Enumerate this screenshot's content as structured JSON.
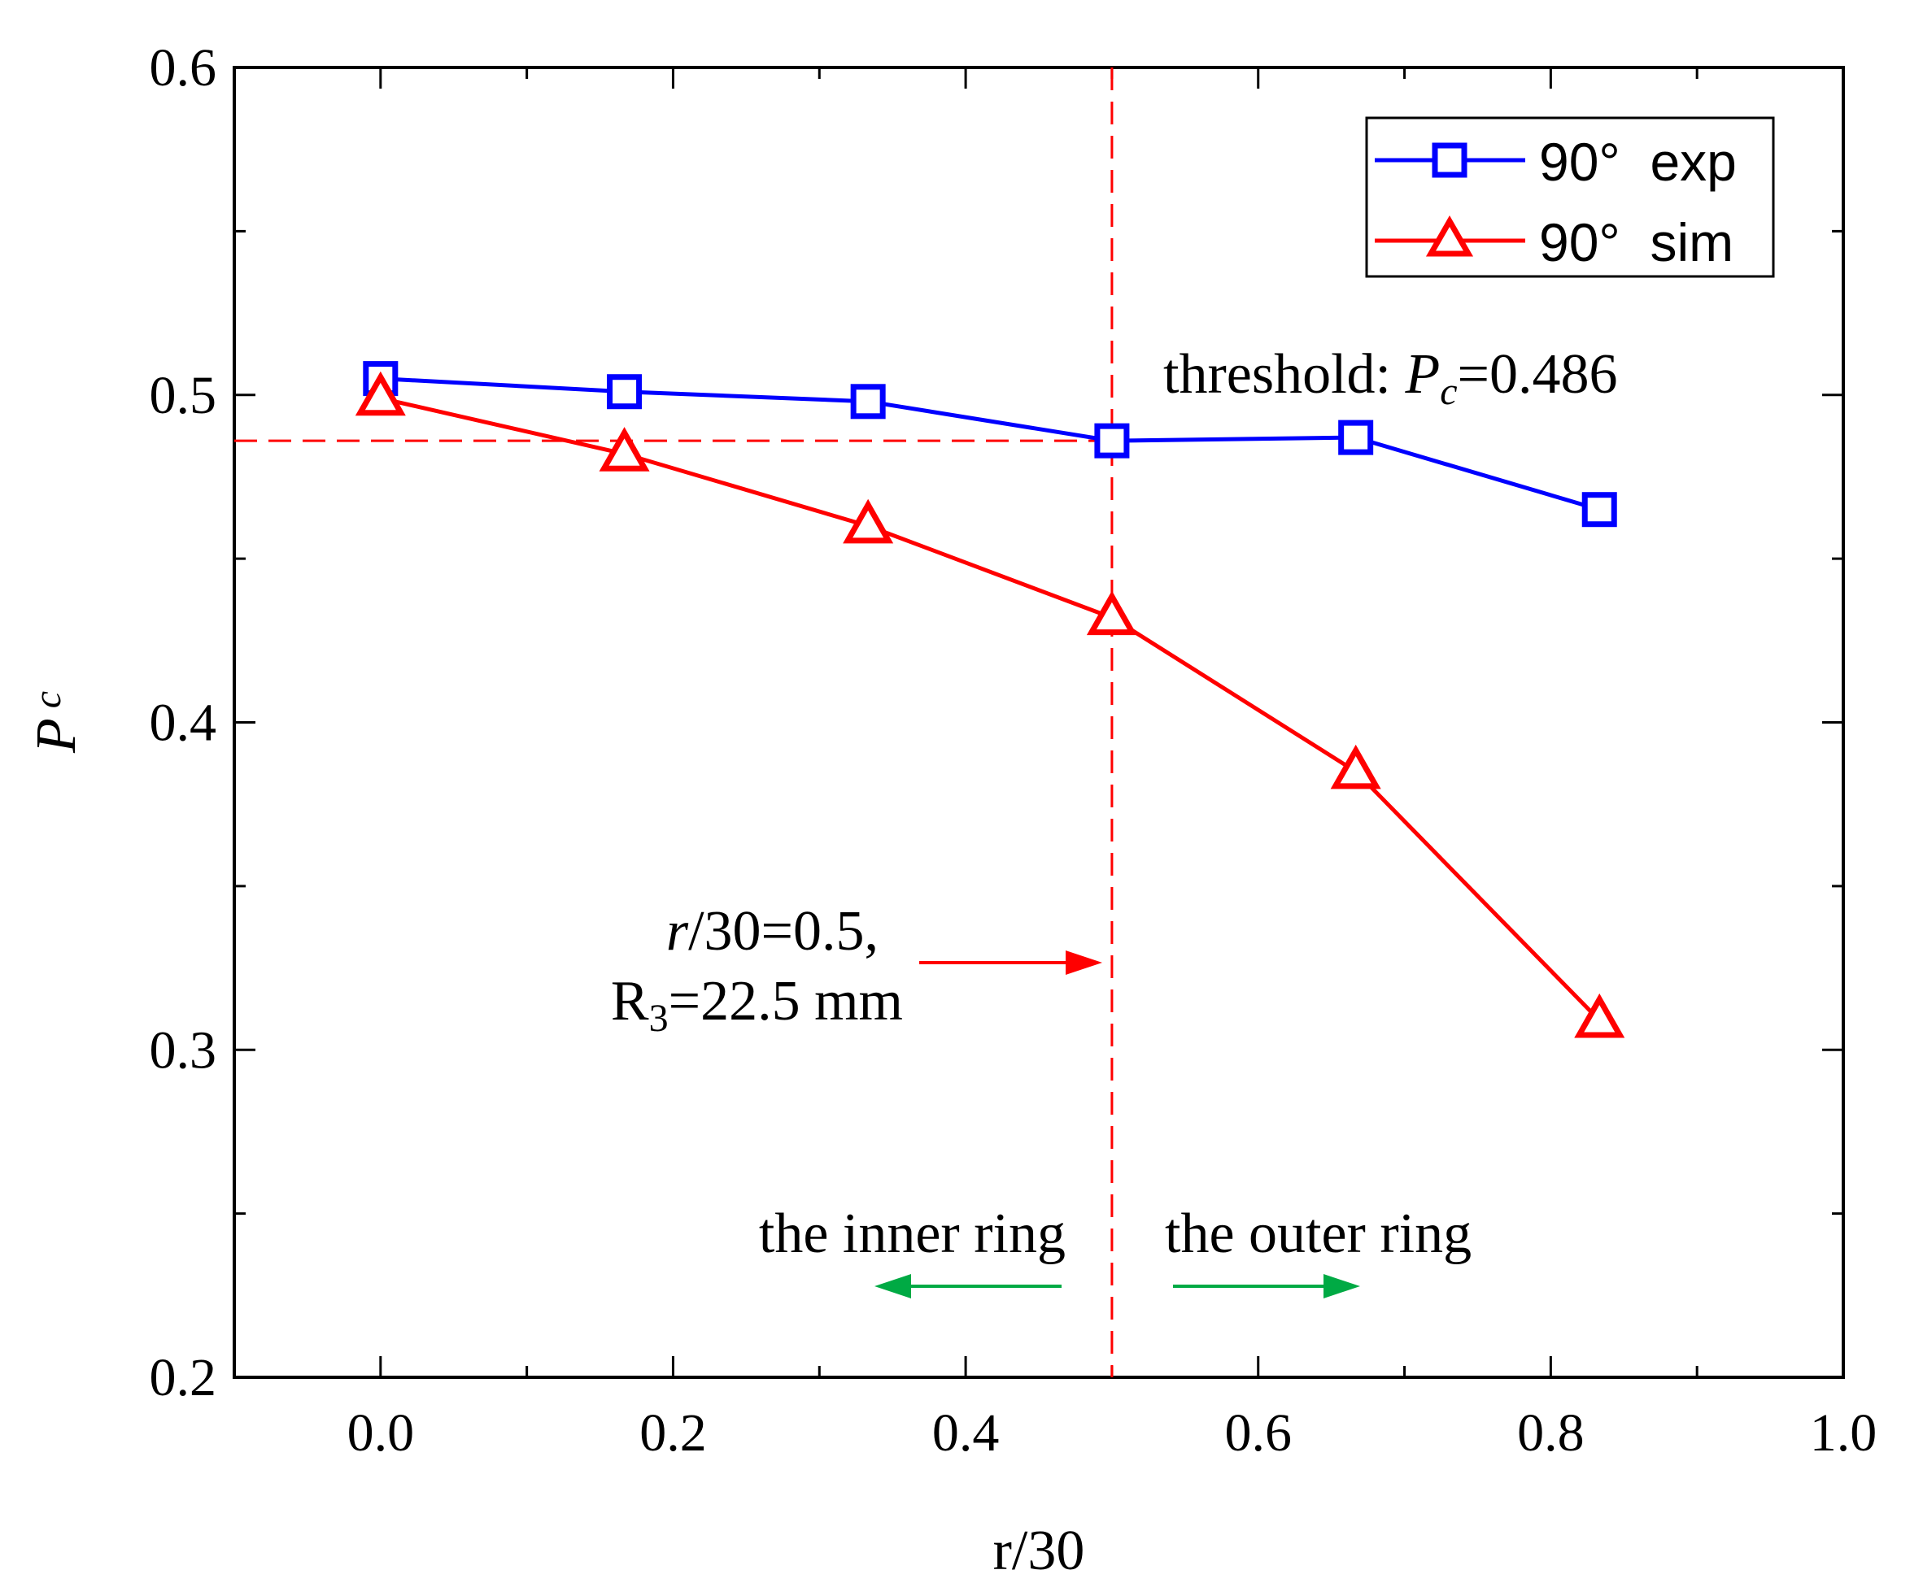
{
  "chart_data": {
    "type": "line",
    "title": "",
    "xlabel": "r/30",
    "ylabel": "P",
    "ylabel_subscript": "c",
    "xlim": [
      -0.1,
      1.0
    ],
    "ylim": [
      0.2,
      0.6
    ],
    "xticks": [
      0.0,
      0.2,
      0.4,
      0.6,
      0.8,
      1.0
    ],
    "xtick_labels": [
      "0.0",
      "0.2",
      "0.4",
      "0.6",
      "0.8",
      "1.0"
    ],
    "yticks": [
      0.2,
      0.3,
      0.4,
      0.5,
      0.6
    ],
    "ytick_labels": [
      "0.2",
      "0.3",
      "0.4",
      "0.5",
      "0.6"
    ],
    "x_minor_step": 0.1,
    "y_minor_step": 0.05,
    "grid": false,
    "legend_position": "top-right",
    "series": [
      {
        "name": "90°  exp",
        "marker": "square",
        "color": "#0000ff",
        "x": [
          0.0,
          0.1667,
          0.3333,
          0.5,
          0.6667,
          0.8333
        ],
        "y": [
          0.505,
          0.501,
          0.498,
          0.486,
          0.487,
          0.465
        ]
      },
      {
        "name": "90°  sim",
        "marker": "triangle",
        "color": "#ff0000",
        "x": [
          0.0,
          0.1667,
          0.3333,
          0.5,
          0.6667,
          0.8333
        ],
        "y": [
          0.499,
          0.482,
          0.46,
          0.432,
          0.385,
          0.309
        ]
      }
    ],
    "reference_lines": {
      "horizontal_y": 0.486,
      "vertical_x": 0.5,
      "color": "#ff0000"
    },
    "annotations": {
      "threshold_prefix": "threshold: ",
      "threshold_var": "P",
      "threshold_sub": "c",
      "threshold_value": "=0.486",
      "marker_line1_var": "r",
      "marker_line1_rest": "/30=0.5,",
      "marker_line2_prefix": "R",
      "marker_line2_sub": "3",
      "marker_line2_rest": "=22.5 mm",
      "inner_ring": "the inner ring",
      "outer_ring": "the outer ring",
      "arrow_red": "#ff0000",
      "arrow_green": "#00aa44"
    }
  }
}
